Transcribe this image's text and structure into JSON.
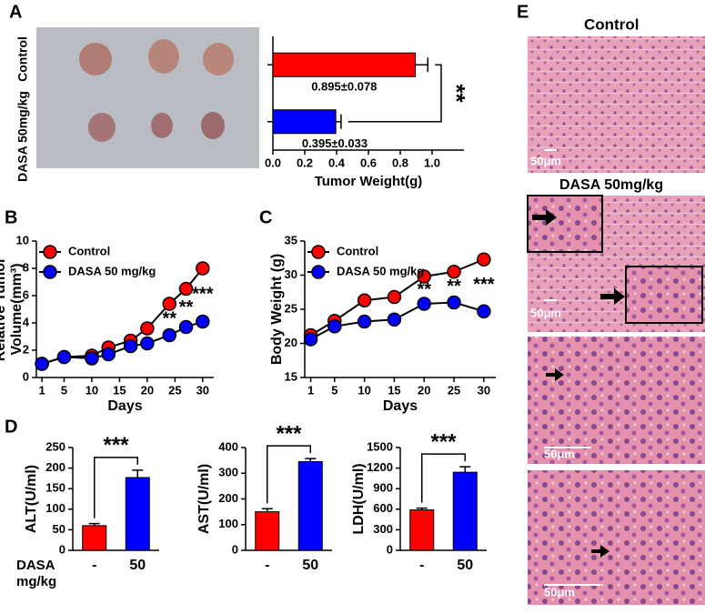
{
  "panel_labels": [
    "A",
    "B",
    "C",
    "D",
    "E"
  ],
  "chart_data": [
    {
      "type": "hbar",
      "categories": [
        "Control",
        "DASA 50mg/kg"
      ],
      "values": [
        0.895,
        0.395
      ],
      "errors": [
        0.078,
        0.033
      ],
      "value_labels": [
        "0.895±0.078",
        "0.395±0.033"
      ],
      "colors": [
        "#ff0000",
        "#0000ff"
      ],
      "xlim": [
        0,
        1.2
      ],
      "xticks": [
        {
          "value": 0,
          "label": "0.0"
        },
        0.2,
        0.4,
        0.6,
        0.8,
        {
          "value": 1,
          "label": "1.0"
        }
      ],
      "xlabel": "Tumor Weight(g)",
      "annotation": "**"
    },
    {
      "type": "line",
      "ylabel": [
        "Relative Tumor",
        "Volume(mm³)"
      ],
      "xlabel": "Days",
      "xlim": [
        0,
        32
      ],
      "xticks": [
        1,
        5,
        10,
        15,
        20,
        25,
        30
      ],
      "ylim": [
        0,
        10
      ],
      "yticks": [
        0,
        2,
        4,
        6,
        8,
        10
      ],
      "series": [
        {
          "name": "Control",
          "color": "#ff0000",
          "x": [
            1,
            5,
            10,
            13,
            17,
            20,
            24,
            27,
            30
          ],
          "values": [
            1.0,
            1.5,
            1.6,
            2.2,
            2.7,
            3.6,
            5.4,
            6.5,
            8.0
          ]
        },
        {
          "name": "DASA 50 mg/kg",
          "color": "#0000ff",
          "x": [
            1,
            5,
            10,
            13,
            17,
            20,
            24,
            27,
            30
          ],
          "values": [
            1.0,
            1.5,
            1.4,
            1.7,
            2.3,
            2.5,
            3.1,
            3.7,
            4.1
          ]
        }
      ],
      "annotations": [
        {
          "text": "**",
          "x": 24
        },
        {
          "text": "**",
          "x": 27
        },
        {
          "text": "***",
          "x": 30
        }
      ]
    },
    {
      "type": "line",
      "ylabel": [
        "Body Weight (g)"
      ],
      "xlabel": "Days",
      "xlim": [
        0,
        32
      ],
      "xticks": [
        1,
        5,
        10,
        15,
        20,
        25,
        30
      ],
      "ylim": [
        15,
        35
      ],
      "yticks": [
        15,
        20,
        25,
        30,
        35
      ],
      "series": [
        {
          "name": "Control",
          "color": "#ff0000",
          "x": [
            1,
            5,
            10,
            15,
            20,
            25,
            30
          ],
          "values": [
            21.2,
            23.3,
            26.3,
            26.8,
            29.8,
            30.5,
            32.3
          ]
        },
        {
          "name": "DASA 50 mg/kg",
          "color": "#0000ff",
          "x": [
            1,
            5,
            10,
            15,
            20,
            25,
            30
          ],
          "values": [
            20.6,
            22.5,
            23.2,
            23.5,
            25.8,
            26.0,
            24.7
          ]
        }
      ],
      "annotations": [
        {
          "text": "**",
          "x": 20
        },
        {
          "text": "**",
          "x": 25
        },
        {
          "text": "***",
          "x": 30
        }
      ]
    },
    {
      "type": "bar",
      "ylabel": "ALT(U/ml)",
      "categories": [
        "-",
        "50"
      ],
      "values": [
        60,
        177
      ],
      "errors": [
        5,
        18
      ],
      "colors": [
        "#ff0000",
        "#0000ff"
      ],
      "ylim": [
        0,
        250
      ],
      "yticks": [
        0,
        50,
        100,
        150,
        200,
        250
      ],
      "annotation": "***",
      "group_label": [
        "DASA",
        "mg/kg"
      ]
    },
    {
      "type": "bar",
      "ylabel": "AST(U/ml)",
      "categories": [
        "-",
        "50"
      ],
      "values": [
        150,
        345
      ],
      "errors": [
        12,
        12
      ],
      "colors": [
        "#ff0000",
        "#0000ff"
      ],
      "ylim": [
        0,
        400
      ],
      "yticks": [
        0,
        100,
        200,
        300,
        400
      ],
      "annotation": "***"
    },
    {
      "type": "bar",
      "ylabel": "LDH(U/ml)",
      "categories": [
        "-",
        "50"
      ],
      "values": [
        590,
        1140
      ],
      "errors": [
        25,
        80
      ],
      "colors": [
        "#ff0000",
        "#0000ff"
      ],
      "ylim": [
        0,
        1500
      ],
      "yticks": [
        0,
        300,
        600,
        900,
        1200,
        1500
      ],
      "annotation": "***"
    }
  ],
  "histology": {
    "titles": [
      "Control",
      "DASA 50mg/kg"
    ],
    "scale_bars": [
      "50μm",
      "50μm",
      "50μm",
      "50μm"
    ]
  }
}
